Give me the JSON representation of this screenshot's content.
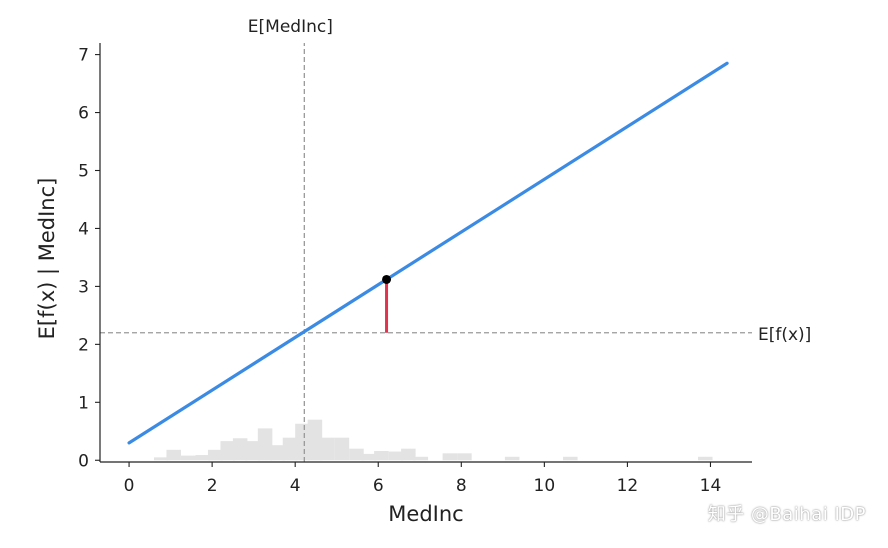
{
  "chart_data": {
    "type": "line",
    "xlabel": "MedInc",
    "ylabel": "E[f(x) | MedInc]",
    "xlim": [
      -0.7,
      15.0
    ],
    "ylim": [
      -0.03,
      7.2
    ],
    "xticks": [
      0,
      2,
      4,
      6,
      8,
      10,
      12,
      14
    ],
    "yticks": [
      0,
      1,
      2,
      3,
      4,
      5,
      6,
      7
    ],
    "grid": false,
    "series": [
      {
        "x": [
          0,
          14.4
        ],
        "y": [
          0.3,
          6.85
        ],
        "color": "#3b8be4"
      }
    ],
    "expected_value": {
      "label": "E[f(x)]",
      "y": 2.2
    },
    "expected_feature": {
      "label": "E[MedInc]",
      "x": 4.22
    },
    "highlight_point": {
      "x": 6.2,
      "y": 3.12,
      "base_y": 2.2,
      "color": "#e0334e"
    },
    "histogram": {
      "color": "#e3e3e3",
      "bin_width": 0.35,
      "bins": [
        {
          "x": 0.6,
          "h": 0.05
        },
        {
          "x": 0.9,
          "h": 0.18
        },
        {
          "x": 1.25,
          "h": 0.08
        },
        {
          "x": 1.6,
          "h": 0.09
        },
        {
          "x": 1.9,
          "h": 0.18
        },
        {
          "x": 2.2,
          "h": 0.33
        },
        {
          "x": 2.5,
          "h": 0.38
        },
        {
          "x": 2.8,
          "h": 0.33
        },
        {
          "x": 3.1,
          "h": 0.55
        },
        {
          "x": 3.4,
          "h": 0.26
        },
        {
          "x": 3.7,
          "h": 0.39
        },
        {
          "x": 4.0,
          "h": 0.63
        },
        {
          "x": 4.3,
          "h": 0.7
        },
        {
          "x": 4.6,
          "h": 0.39
        },
        {
          "x": 4.95,
          "h": 0.39
        },
        {
          "x": 5.3,
          "h": 0.2
        },
        {
          "x": 5.6,
          "h": 0.11
        },
        {
          "x": 5.9,
          "h": 0.16
        },
        {
          "x": 6.25,
          "h": 0.15
        },
        {
          "x": 6.55,
          "h": 0.2
        },
        {
          "x": 6.85,
          "h": 0.06
        },
        {
          "x": 7.55,
          "h": 0.12
        },
        {
          "x": 7.9,
          "h": 0.12
        },
        {
          "x": 9.05,
          "h": 0.06
        },
        {
          "x": 10.45,
          "h": 0.06
        },
        {
          "x": 13.7,
          "h": 0.06
        }
      ]
    }
  },
  "watermark": "知乎 @Baihai IDP"
}
